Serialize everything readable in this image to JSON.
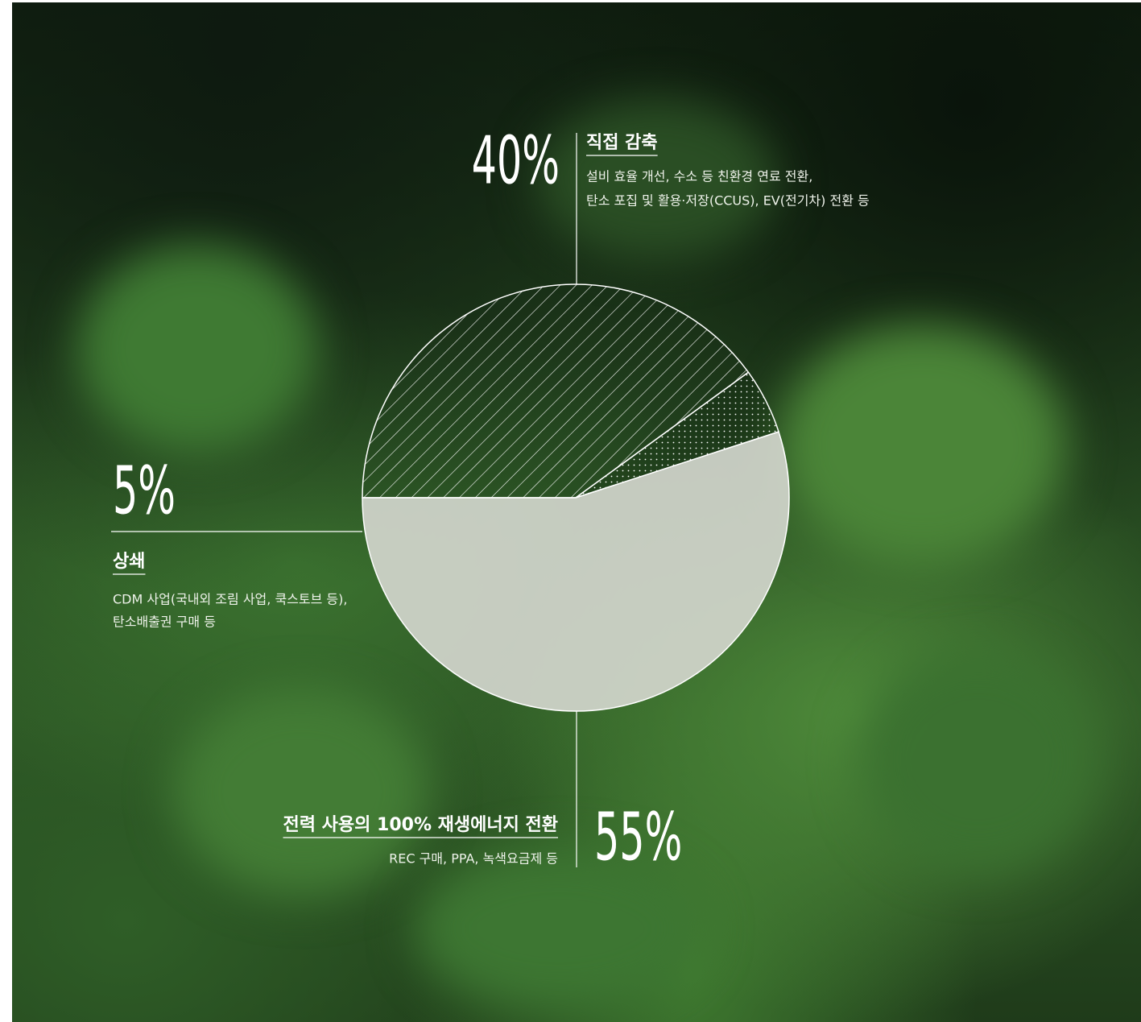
{
  "chart_data": {
    "type": "pie",
    "categories": [
      "직접 감축",
      "상쇄",
      "전력 사용의 100% 재생에너지 전환"
    ],
    "values": [
      40,
      5,
      55
    ],
    "value_labels": [
      "40%",
      "5%",
      "55%"
    ],
    "descriptions": [
      [
        "설비 효율 개선, 수소 등 친환경 연료 전환,",
        "탄소 포집 및 활용·저장(CCUS), EV(전기차) 전환 등"
      ],
      [
        "CDM 사업(국내외 조림 사업, 쿡스토브 등),",
        "탄소배출권 구매 등"
      ],
      [
        "REC 구매, PPA, 녹색요금제 등"
      ]
    ]
  }
}
